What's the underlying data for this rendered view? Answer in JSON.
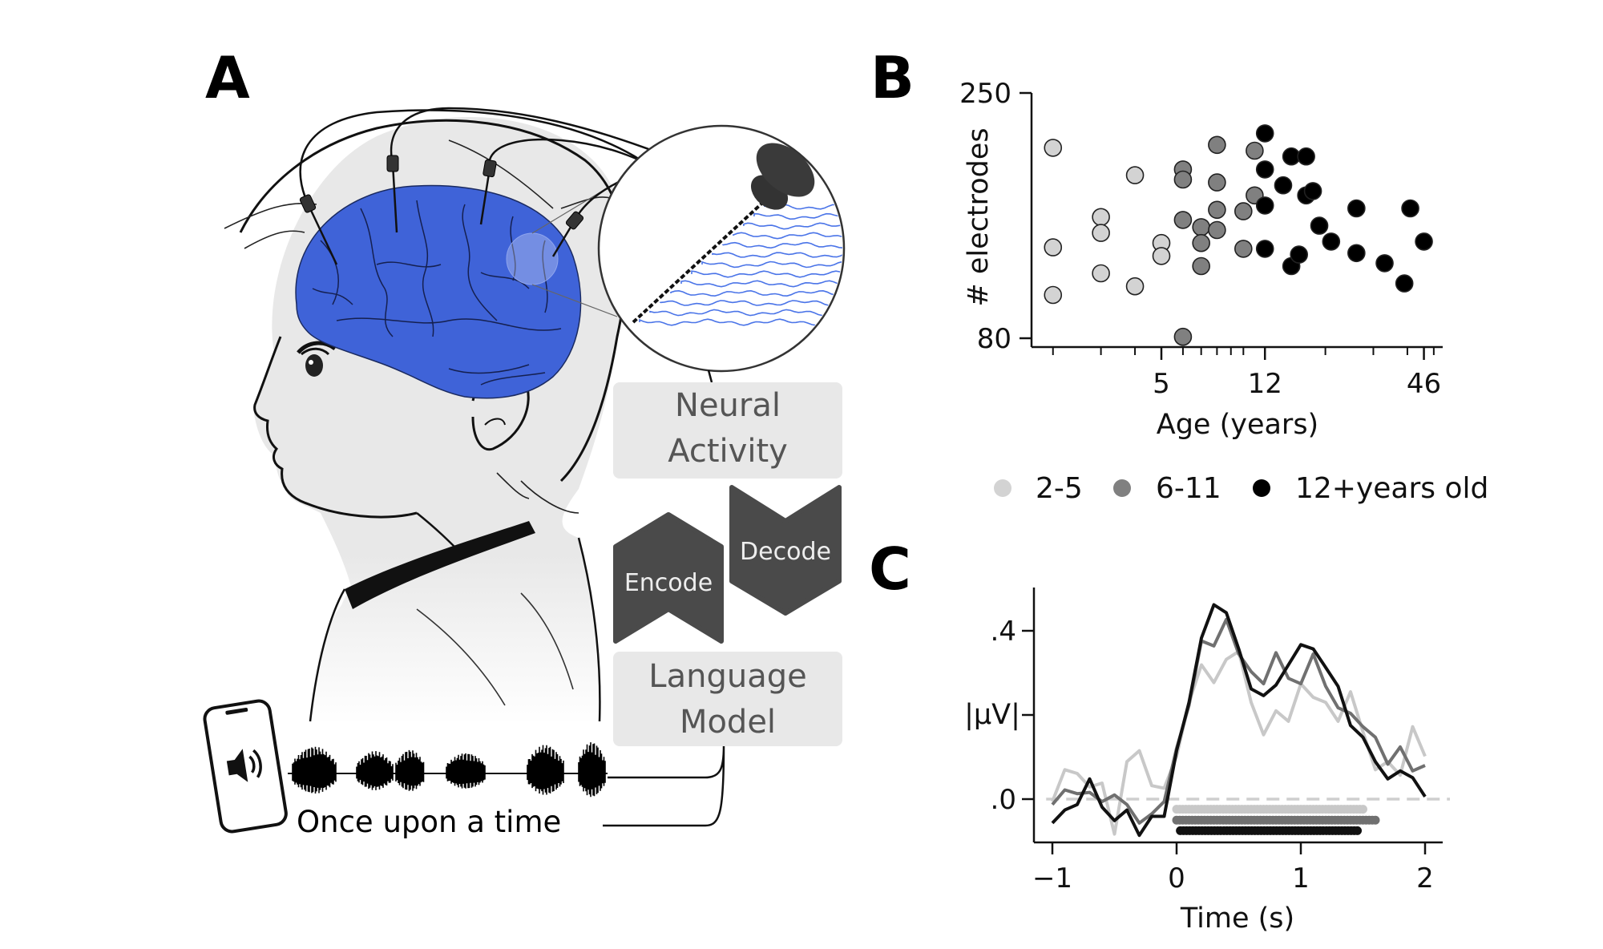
{
  "panel_a": {
    "label": "A",
    "neural_box": {
      "line1": "Neural",
      "line2": "Activity"
    },
    "encode_label": "Encode",
    "decode_label": "Decode",
    "lm_box": {
      "line1": "Language",
      "line2": "Model"
    },
    "caption": "Once upon a time",
    "brain_color": "#3f63d8",
    "trace_color": "#4a74e8"
  },
  "panel_b": {
    "label": "B"
  },
  "panel_c": {
    "label": "C"
  },
  "legend": {
    "items": [
      {
        "label": "2-5",
        "color": "#d3d3d3"
      },
      {
        "label": "6-11",
        "color": "#808080"
      },
      {
        "label": "12+years old",
        "color": "#000000"
      }
    ]
  },
  "chart_data": [
    {
      "type": "scatter",
      "xlabel": "Age (years)",
      "ylabel": "# electrodes",
      "xscale": "log",
      "xlim": [
        1.8,
        52
      ],
      "ylim": [
        80,
        250
      ],
      "x_ticks": [
        {
          "value": 5,
          "label": "5"
        },
        {
          "value": 12,
          "label": "12"
        },
        {
          "value": 46,
          "label": "46"
        }
      ],
      "x_minor_ticks": [
        2,
        3,
        4,
        6,
        7,
        8,
        9,
        10,
        20,
        30,
        40,
        50
      ],
      "y_ticks": [
        {
          "value": 250,
          "label": "250"
        },
        {
          "value": 80,
          "label": "80"
        }
      ],
      "series": [
        {
          "name": "2-5",
          "color": "#d3d3d3",
          "points": [
            [
              2,
              212
            ],
            [
              2,
              143
            ],
            [
              2,
              110
            ],
            [
              3,
              164
            ],
            [
              3,
              153
            ],
            [
              3,
              125
            ],
            [
              4,
              193
            ],
            [
              4,
              116
            ],
            [
              5,
              146
            ],
            [
              5,
              137
            ]
          ]
        },
        {
          "name": "6-11",
          "color": "#808080",
          "points": [
            [
              6,
              197
            ],
            [
              6,
              190
            ],
            [
              6,
              162
            ],
            [
              6,
              81
            ],
            [
              7,
              157
            ],
            [
              7,
              146
            ],
            [
              7,
              130
            ],
            [
              8,
              214
            ],
            [
              8,
              188
            ],
            [
              8,
              169
            ],
            [
              8,
              155
            ],
            [
              10,
              168
            ],
            [
              10,
              142
            ],
            [
              11,
              210
            ],
            [
              11,
              179
            ]
          ]
        },
        {
          "name": "12+years old",
          "color": "#000000",
          "points": [
            [
              12,
              222
            ],
            [
              12,
              197
            ],
            [
              12,
              172
            ],
            [
              12,
              142
            ],
            [
              14,
              186
            ],
            [
              15,
              206
            ],
            [
              15,
              130
            ],
            [
              16,
              138
            ],
            [
              17,
              206
            ],
            [
              17,
              179
            ],
            [
              18,
              182
            ],
            [
              19,
              158
            ],
            [
              21,
              147
            ],
            [
              26,
              170
            ],
            [
              26,
              139
            ],
            [
              33,
              132
            ],
            [
              39,
              118
            ],
            [
              41,
              170
            ],
            [
              46,
              147
            ]
          ]
        }
      ]
    },
    {
      "type": "line",
      "xlabel": "Time (s)",
      "ylabel": "|μV|",
      "xlim": [
        -1.15,
        2.15
      ],
      "ylim": [
        -0.1,
        0.5
      ],
      "x_ticks": [
        {
          "value": -1,
          "label": "−1"
        },
        {
          "value": 0,
          "label": "0"
        },
        {
          "value": 1,
          "label": "1"
        },
        {
          "value": 2,
          "label": "2"
        }
      ],
      "y_ticks": [
        {
          "value": 0.4,
          "label": ".4"
        },
        {
          "value": 0.2,
          "label": ""
        },
        {
          "value": 0.0,
          "label": ".0"
        }
      ],
      "baseline": 0,
      "x": [
        -1,
        -0.9,
        -0.8,
        -0.7,
        -0.6,
        -0.5,
        -0.4,
        -0.3,
        -0.2,
        -0.1,
        0,
        0.1,
        0.2,
        0.3,
        0.4,
        0.5,
        0.6,
        0.7,
        0.8,
        0.9,
        1,
        1.1,
        1.2,
        1.3,
        1.4,
        1.5,
        1.6,
        1.7,
        1.8,
        1.9,
        2
      ],
      "series": [
        {
          "name": "2-5",
          "color": "#c8c8c8",
          "values": [
            -0.006,
            0.07,
            0.061,
            0.029,
            0.038,
            -0.083,
            0.089,
            0.115,
            0.032,
            0.026,
            0.102,
            0.23,
            0.319,
            0.277,
            0.332,
            0.351,
            0.23,
            0.153,
            0.21,
            0.185,
            0.274,
            0.242,
            0.23,
            0.185,
            0.255,
            0.16,
            0.07,
            0.089,
            0.057,
            0.172,
            0.102
          ]
        },
        {
          "name": "6-11",
          "color": "#707070",
          "values": [
            -0.013,
            0.022,
            0.013,
            0.016,
            -0.006,
            0.01,
            -0.013,
            -0.057,
            -0.035,
            -0.006,
            0.121,
            0.223,
            0.376,
            0.364,
            0.427,
            0.345,
            0.303,
            0.274,
            0.348,
            0.287,
            0.274,
            0.345,
            0.268,
            0.217,
            0.204,
            0.172,
            0.147,
            0.083,
            0.124,
            0.067,
            0.08
          ]
        },
        {
          "name": "12+years old",
          "color": "#111111",
          "values": [
            -0.057,
            -0.026,
            -0.013,
            0.048,
            -0.019,
            -0.051,
            -0.026,
            -0.086,
            -0.041,
            -0.041,
            0.115,
            0.23,
            0.383,
            0.462,
            0.443,
            0.357,
            0.262,
            0.246,
            0.271,
            0.319,
            0.367,
            0.357,
            0.313,
            0.268,
            0.175,
            0.147,
            0.089,
            0.048,
            0.067,
            0.051,
            0.006
          ]
        }
      ],
      "significance": [
        {
          "group": "2-5",
          "color": "#c8c8c8",
          "start": 0.0,
          "end": 1.52,
          "y": -0.024
        },
        {
          "group": "6-11",
          "color": "#707070",
          "start": 0.0,
          "end": 1.61,
          "y": -0.05
        },
        {
          "group": "12+years old",
          "color": "#111111",
          "start": 0.03,
          "end": 1.46,
          "y": -0.075
        }
      ]
    }
  ]
}
